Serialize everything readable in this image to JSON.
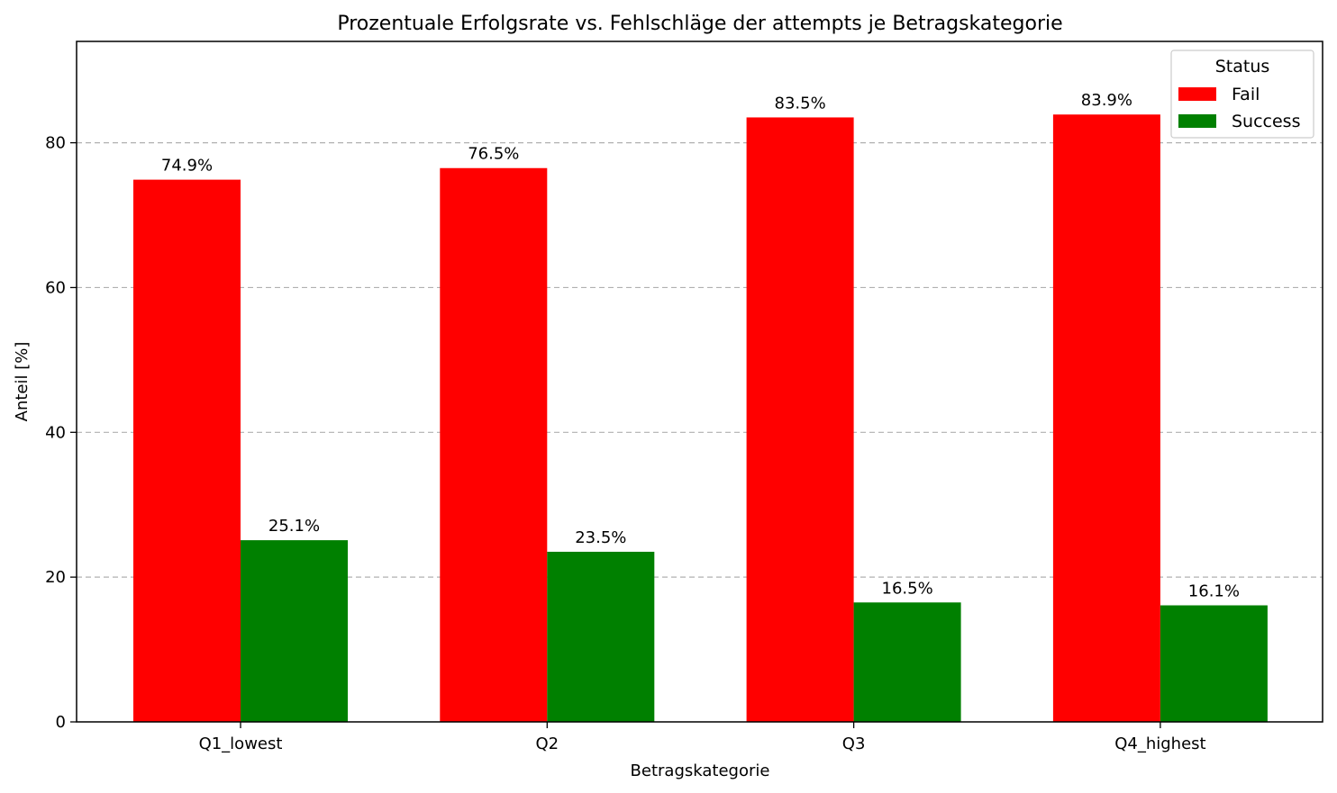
{
  "chart_data": {
    "type": "bar",
    "title": "Prozentuale Erfolgsrate vs. Fehlschläge der attempts je Betragskategorie",
    "xlabel": "Betragskategorie",
    "ylabel": "Anteil [%]",
    "categories": [
      "Q1_lowest",
      "Q2",
      "Q3",
      "Q4_highest"
    ],
    "series": [
      {
        "name": "Fail",
        "color": "#ff0000",
        "values": [
          74.9,
          76.5,
          83.5,
          83.9
        ],
        "labels": [
          "74.9%",
          "76.5%",
          "83.5%",
          "83.9%"
        ]
      },
      {
        "name": "Success",
        "color": "#008000",
        "values": [
          25.1,
          23.5,
          16.5,
          16.1
        ],
        "labels": [
          "25.1%",
          "23.5%",
          "16.5%",
          "16.1%"
        ]
      }
    ],
    "ylim": [
      0,
      94
    ],
    "yticks": [
      0,
      20,
      40,
      60,
      80
    ],
    "ytick_labels": [
      "0",
      "20",
      "40",
      "60",
      "80"
    ],
    "grid": "y dashed",
    "legend": {
      "title": "Status",
      "placement": "top-right"
    }
  }
}
